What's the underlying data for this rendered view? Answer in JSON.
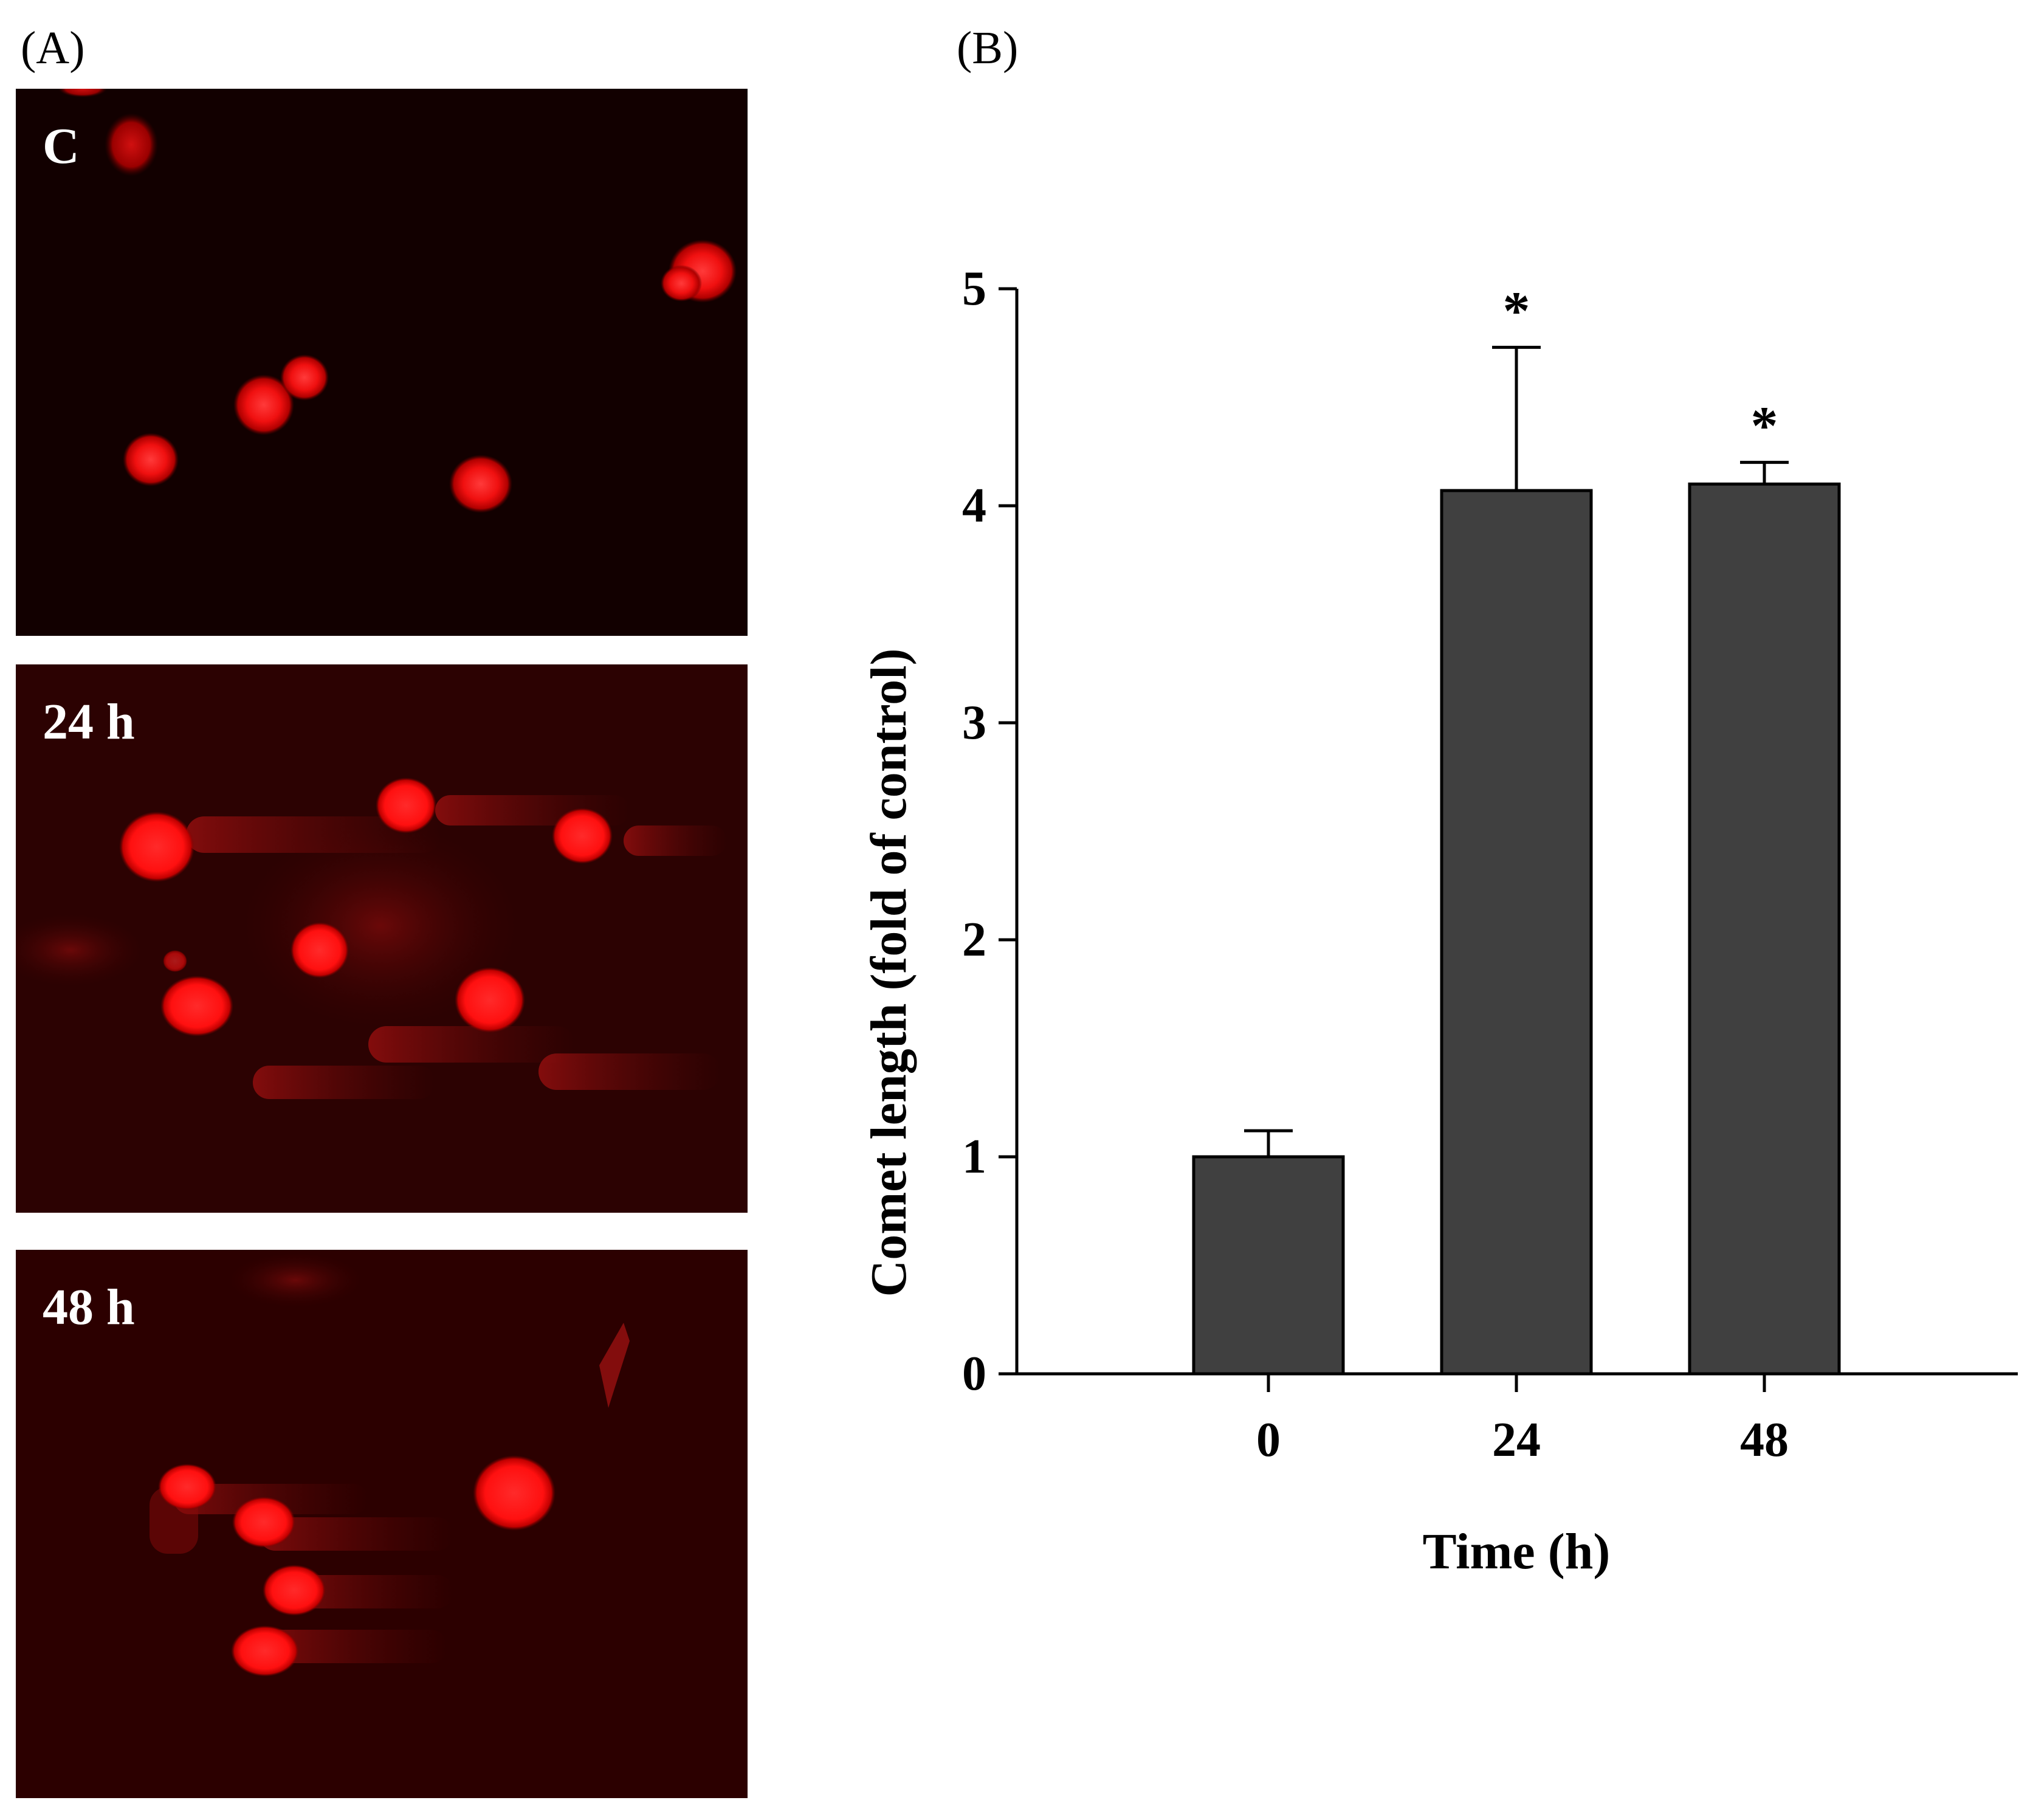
{
  "panels": {
    "a_label": "(A)",
    "b_label": "(B)"
  },
  "micrographs": [
    {
      "label": "C",
      "background": "#120000"
    },
    {
      "label": "24 h",
      "background": "#2c0202"
    },
    {
      "label": "48 h",
      "background": "#2c0000"
    }
  ],
  "colors": {
    "bar_fill": "#404040",
    "nucleus": "#ff1a1a"
  },
  "chart_data": {
    "type": "bar",
    "categories": [
      "0",
      "24",
      "48"
    ],
    "values": [
      1.0,
      4.07,
      4.1
    ],
    "error": [
      0.12,
      0.66,
      0.1
    ],
    "annotations": [
      "",
      "*",
      "*"
    ],
    "xlabel": "Time (h)",
    "ylabel": "Comet length (fold of control)",
    "ylim": [
      0,
      5
    ],
    "yticks": [
      0,
      1,
      2,
      3,
      4,
      5
    ],
    "grid": false,
    "legend": "none"
  }
}
